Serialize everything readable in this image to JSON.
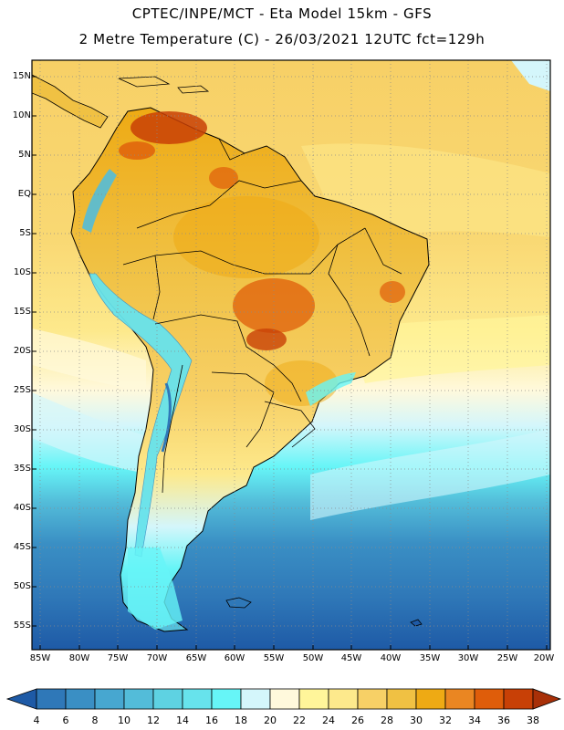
{
  "header": {
    "line1": "CPTEC/INPE/MCT -  Eta Model 15km - GFS",
    "line2": "2 Metre Temperature (C) - 26/03/2021 12UTC fct=129h"
  },
  "map": {
    "lat_labels": [
      "15N",
      "10N",
      "5N",
      "EQ",
      "5S",
      "10S",
      "15S",
      "20S",
      "25S",
      "30S",
      "35S",
      "40S",
      "45S",
      "50S",
      "55S"
    ],
    "lon_labels": [
      "85W",
      "80W",
      "75W",
      "70W",
      "65W",
      "60W",
      "55W",
      "50W",
      "45W",
      "40W",
      "35W",
      "30W",
      "25W",
      "20W"
    ],
    "grid_lines": "dotted"
  },
  "colorbar": {
    "labels": [
      "4",
      "6",
      "8",
      "10",
      "12",
      "14",
      "16",
      "18",
      "20",
      "22",
      "24",
      "26",
      "28",
      "30",
      "32",
      "34",
      "36",
      "38"
    ],
    "colors": [
      "#1e5aa6",
      "#2f78b8",
      "#3a8fc4",
      "#47a7d0",
      "#53bcd9",
      "#5ed2e2",
      "#67e3ec",
      "#66f5f7",
      "#d4f6fb",
      "#fff9dc",
      "#fff59a",
      "#fde98c",
      "#f7d066",
      "#f0c143",
      "#eeaa14",
      "#ea8622",
      "#df5d0a",
      "#c84006",
      "#a83008"
    ]
  }
}
